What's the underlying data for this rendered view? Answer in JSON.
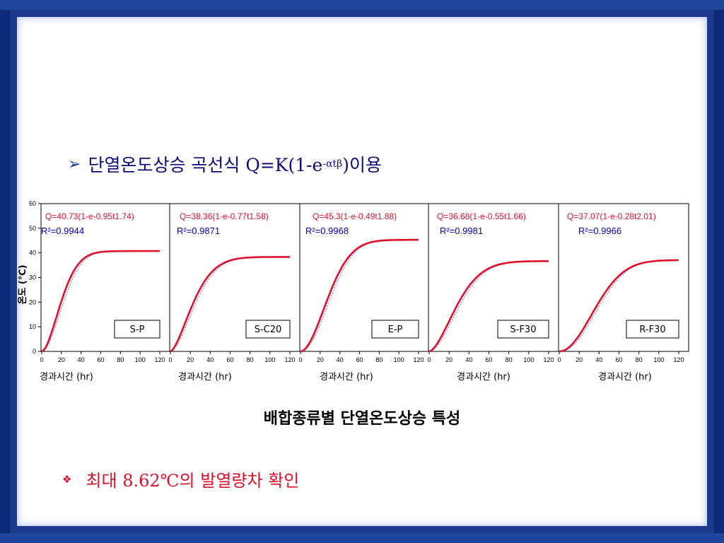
{
  "heading": {
    "bullet_icon": "arrow-bullet-icon",
    "prefix": "단열온도상승 곡선식 Q=K(1-e",
    "exponent": "-αtβ",
    "suffix": ")이용"
  },
  "caption": "배합종류별 단열온도상승 특성",
  "bullet": {
    "icon": "diamond-bullet-icon",
    "text": "최대 8.62℃의 발열량차 확인"
  },
  "colors": {
    "fit_line": "#e0102a",
    "measured": "#5a5aff",
    "axis": "#000000",
    "equation_text": "#e0102a",
    "r2_text": "#0000c0",
    "heading_text": "#0b0b7a"
  },
  "chart_data": [
    {
      "type": "line",
      "label": "S-P",
      "equation": "Q=40.73(1-e-0.95t1.74)",
      "r2": "R²=0.9944",
      "K": 40.73,
      "a": 0.95,
      "b": 1.74,
      "xlabel": "경과시간 (hr)",
      "ylabel": "온도 (℃)",
      "xlim": [
        0,
        120
      ],
      "ylim": [
        0,
        60
      ],
      "xticks": [
        0,
        20,
        40,
        60,
        80,
        100,
        120
      ],
      "yticks": [
        0,
        10,
        20,
        30,
        40,
        50,
        60
      ]
    },
    {
      "type": "line",
      "label": "S-C20",
      "equation": "Q=38.36(1-e-0.77t1.58)",
      "r2": "R²=0.9871",
      "K": 38.36,
      "a": 0.77,
      "b": 1.58,
      "xlabel": "경과시간 (hr)",
      "xlim": [
        0,
        120
      ],
      "ylim": [
        0,
        60
      ],
      "xticks": [
        0,
        20,
        40,
        60,
        80,
        100,
        120
      ]
    },
    {
      "type": "line",
      "label": "E-P",
      "equation": "Q=45.3(1-e-0.49t1.88)",
      "r2": "R²=0.9968",
      "K": 45.3,
      "a": 0.49,
      "b": 1.88,
      "xlabel": "경과시간 (hr)",
      "xlim": [
        0,
        120
      ],
      "ylim": [
        0,
        60
      ],
      "xticks": [
        0,
        20,
        40,
        60,
        80,
        100,
        120
      ]
    },
    {
      "type": "line",
      "label": "S-F30",
      "equation": "Q=36.68(1-e-0.55t1.66)",
      "r2": "R²=0.9981",
      "K": 36.68,
      "a": 0.55,
      "b": 1.66,
      "xlabel": "경과시간 (hr)",
      "xlim": [
        0,
        120
      ],
      "ylim": [
        0,
        60
      ],
      "xticks": [
        0,
        20,
        40,
        60,
        80,
        100,
        120
      ]
    },
    {
      "type": "line",
      "label": "R-F30",
      "equation": "Q=37.07(1-e-0.28t2.01)",
      "r2": "R²=0.9966",
      "K": 37.07,
      "a": 0.28,
      "b": 2.01,
      "xlabel": "경과시간 (hr)",
      "xlim": [
        0,
        120
      ],
      "ylim": [
        0,
        60
      ],
      "xticks": [
        0,
        20,
        40,
        60,
        80,
        100,
        120
      ]
    }
  ]
}
